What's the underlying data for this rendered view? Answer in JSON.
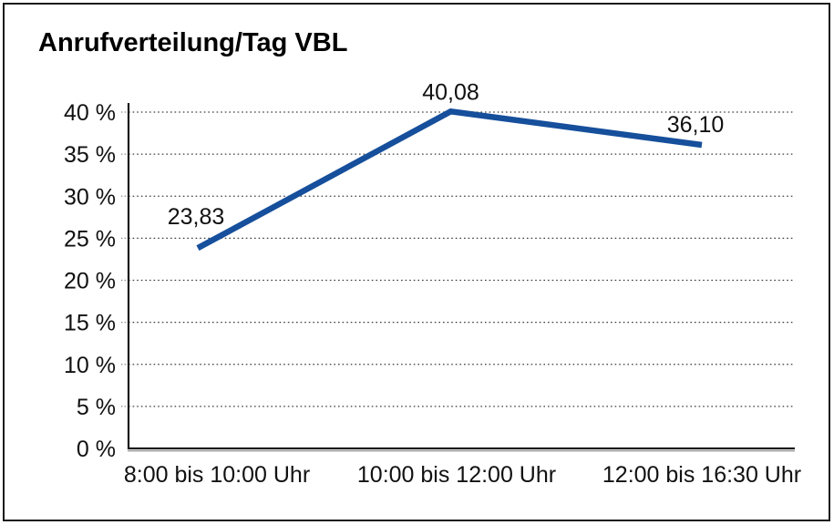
{
  "chart_data": {
    "type": "line",
    "title": "Anrufverteilung/Tag VBL",
    "categories": [
      "8:00 bis 10:00 Uhr",
      "10:00 bis 12:00 Uhr",
      "12:00 bis 16:30 Uhr"
    ],
    "series": [
      {
        "name": "Anrufverteilung",
        "values": [
          23.83,
          40.08,
          36.1
        ],
        "display_values": [
          "23,83",
          "40,08",
          "36,10"
        ],
        "color": "#164f9b"
      }
    ],
    "xlabel": "",
    "ylabel": "",
    "ylim": [
      0,
      40
    ],
    "ytick_step": 5,
    "ytick_labels": [
      "0 %",
      "5 %",
      "10 %",
      "15 %",
      "20 %",
      "25 %",
      "30 %",
      "35 %",
      "40 %"
    ],
    "grid": "horizontal-dotted",
    "legend_position": "none",
    "text_color": "#111111",
    "axis_color": "#1a1a1a",
    "background_color": "#ffffff"
  }
}
